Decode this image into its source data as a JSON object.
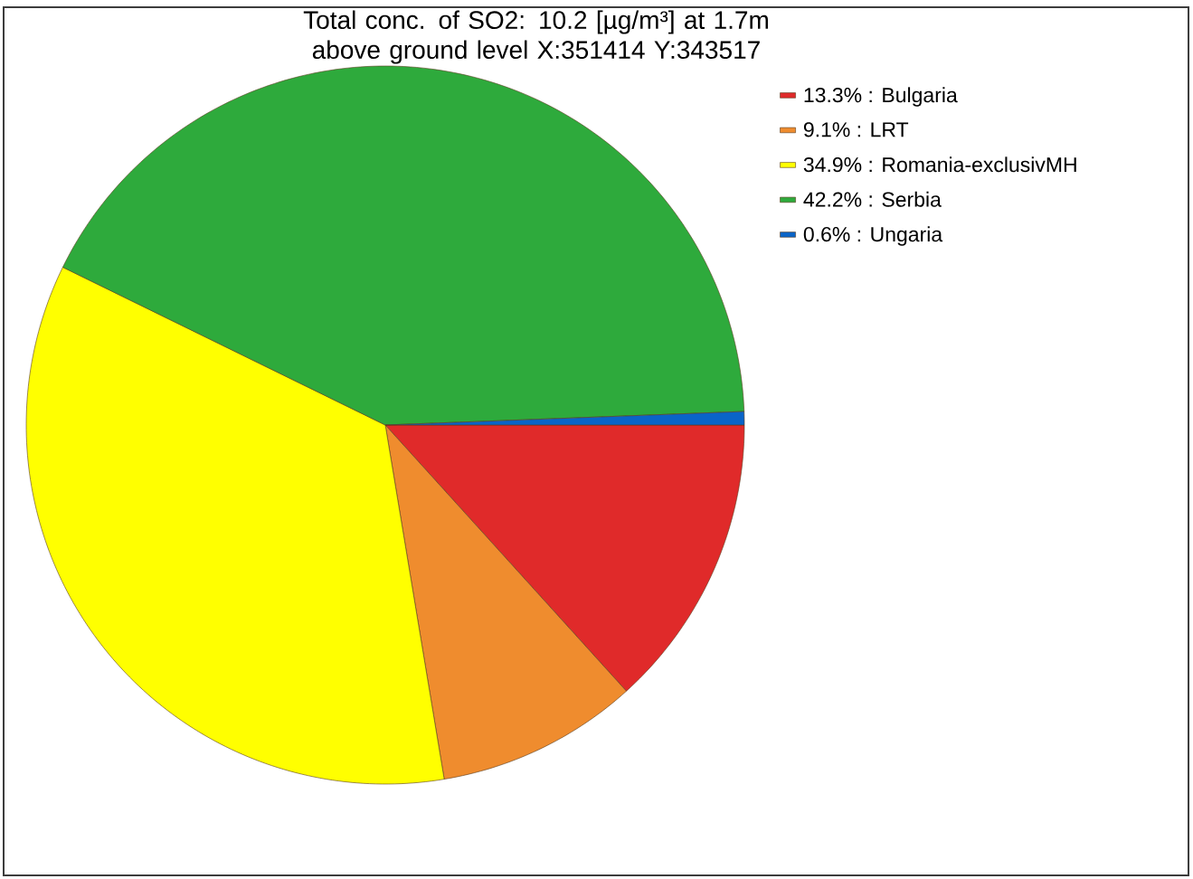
{
  "chart_data": {
    "type": "pie",
    "title": "Total conc. of SO2: 10.2 [µg/m³] at 1.7m above ground level  X:351414 Y:343517",
    "categories": [
      "13.3% : Bulgaria",
      "9.1% : LRT",
      "34.9% : Romania-exclusivMH",
      "42.2% : Serbia",
      "0.6% : Ungaria"
    ],
    "values": [
      13.3,
      9.1,
      34.9,
      42.2,
      0.6
    ],
    "colors": [
      "#e02a2a",
      "#ef8c2e",
      "#ffff00",
      "#2eaa3c",
      "#0a64c8"
    ],
    "legend": "top right"
  }
}
